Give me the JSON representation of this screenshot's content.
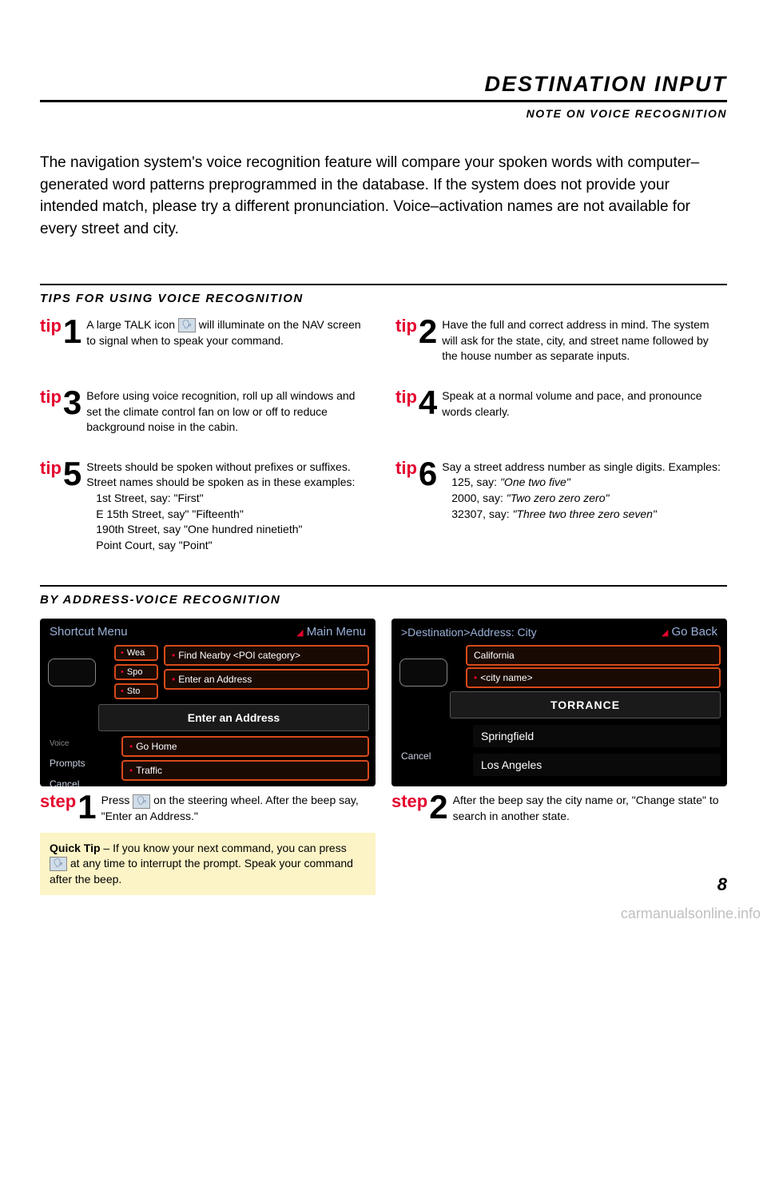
{
  "header": {
    "title": "DESTINATION INPUT",
    "subtitle": "NOTE ON VOICE RECOGNITION"
  },
  "intro": "The navigation system's voice recognition feature will compare your spoken words with computer–generated word patterns preprogrammed in the database. If the system does not provide your intended match, please try a different pronunciation. Voice–activation names are not available for every street and city.",
  "tipsTitle": "TIPS FOR USING VOICE RECOGNITION",
  "tipLabel": "tip",
  "tips": [
    {
      "num": "1",
      "text": "A large TALK icon ",
      "text2": " will illuminate on the NAV screen to signal when to speak your command."
    },
    {
      "num": "2",
      "text": "Have the full and correct address in mind. The system will ask for the state, city, and street name followed by the house number as separate inputs."
    },
    {
      "num": "3",
      "text": "Before using voice recognition, roll up all windows and set the climate control fan on low or off to reduce background noise in the cabin."
    },
    {
      "num": "4",
      "text": "Speak at a normal volume and pace, and pronounce words clearly."
    },
    {
      "num": "5",
      "text": "Streets should be spoken without prefixes or suffixes. Street names should be spoken as in these examples:",
      "lines": [
        "1st Street, say: \"First\"",
        "E 15th Street, say\" \"Fifteenth\"",
        "190th Street, say \"One hundred ninetieth\"",
        "Point Court, say \"Point\""
      ]
    },
    {
      "num": "6",
      "text": "Say a street address number as single digits. Examples:",
      "lines": [
        "125, say: <em>\"One two five\"</em>",
        "2000, say: <em>\"Two zero zero zero\"</em>",
        "32307, say: <em>\"Three two three zero seven\"</em>"
      ]
    }
  ],
  "byAddressTitle": "BY ADDRESS-VOICE RECOGNITION",
  "stepLabel": "step",
  "screen1": {
    "title": "Shortcut Menu",
    "right": "Main Menu",
    "smallBtns": [
      "Wea",
      "Spo",
      "Sto"
    ],
    "btns": [
      "Find Nearby <POI category>",
      "Enter an Address"
    ],
    "mainBar": "Enter an Address",
    "lowerBtns": [
      "Go Home",
      "Traffic"
    ],
    "leftItems": [
      "Voice",
      "Prompts",
      "Cancel"
    ]
  },
  "screen2": {
    "title": ">Destination>Address: City",
    "right": "Go Back",
    "topBtn": "California",
    "cityBtn": "<city name>",
    "mainBar": "TORRANCE",
    "rows": [
      "Springfield",
      "Los Angeles"
    ],
    "cancel": "Cancel"
  },
  "steps": [
    {
      "num": "1",
      "pre": "Press ",
      "post": " on the steering wheel.  After the beep say, \"Enter an Address.\""
    },
    {
      "num": "2",
      "text": "After the beep say the city name or, \"Change state\" to search in another state."
    }
  ],
  "quickTip": {
    "label": "Quick Tip",
    "pre": " – If you know your next command, you can press ",
    "post": " at any time to interrupt the prompt. Speak your command after the beep."
  },
  "pageNum": "8",
  "watermark": "carmanualsonline.info",
  "colors": {
    "accent": "#e4032e",
    "tipBg": "#fcf4c6",
    "orange": "#d84a1a"
  }
}
